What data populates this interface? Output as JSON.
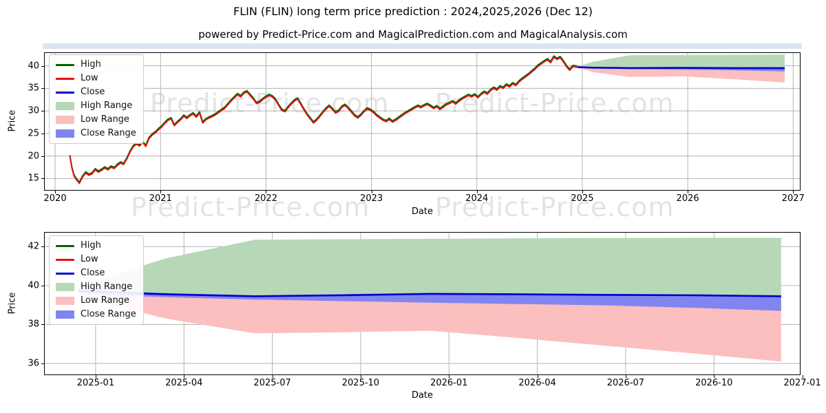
{
  "header": {
    "title": "FLIN (FLIN) long term price prediction : 2024,2025,2026 (Dec 12)",
    "subtitle": "powered by Predict-Price.com and MagicalPrediction.com and MagicalAnalysis.com"
  },
  "watermark": "Predict-Price.com",
  "colors": {
    "high_line": "#006400",
    "low_line": "#e81010",
    "close_line": "#0000cc",
    "high_range_fill": "#b7d8b7",
    "low_range_fill": "#fbbfbf",
    "close_range_fill": "#8185f0",
    "grid": "#b3b3b3",
    "spine": "#000000"
  },
  "chart_data": [
    {
      "type": "line",
      "title": "",
      "xlabel": "Date",
      "ylabel": "Price",
      "grid": true,
      "legend_position": "upper left",
      "x_range": [
        2019.895,
        2027.07
      ],
      "y_range": [
        12.3,
        43.0
      ],
      "x_ticks": [
        {
          "v": 2020,
          "label": "2020"
        },
        {
          "v": 2021,
          "label": "2021"
        },
        {
          "v": 2022,
          "label": "2022"
        },
        {
          "v": 2023,
          "label": "2023"
        },
        {
          "v": 2024,
          "label": "2024"
        },
        {
          "v": 2025,
          "label": "2025"
        },
        {
          "v": 2026,
          "label": "2026"
        },
        {
          "v": 2027,
          "label": "2027"
        }
      ],
      "y_ticks": [
        {
          "v": 15,
          "label": "15"
        },
        {
          "v": 20,
          "label": "20"
        },
        {
          "v": 25,
          "label": "25"
        },
        {
          "v": 30,
          "label": "30"
        },
        {
          "v": 35,
          "label": "35"
        },
        {
          "v": 40,
          "label": "40"
        }
      ],
      "legend": [
        {
          "label": "High",
          "kind": "line",
          "color": "#006400"
        },
        {
          "label": "Low",
          "kind": "line",
          "color": "#e81010"
        },
        {
          "label": "Close",
          "kind": "line",
          "color": "#0000cc"
        },
        {
          "label": "High Range",
          "kind": "patch",
          "color": "#b7d8b7"
        },
        {
          "label": "Low Range",
          "kind": "patch",
          "color": "#fbbfbf"
        },
        {
          "label": "Close Range",
          "kind": "patch",
          "color": "#8185f0"
        }
      ],
      "history": {
        "high_offset": 0.3,
        "low": [
          [
            2020.14,
            19.9
          ],
          [
            2020.16,
            17.2
          ],
          [
            2020.18,
            15.5
          ],
          [
            2020.2,
            14.8
          ],
          [
            2020.23,
            13.9
          ],
          [
            2020.26,
            15.3
          ],
          [
            2020.29,
            16.2
          ],
          [
            2020.32,
            15.7
          ],
          [
            2020.35,
            16.0
          ],
          [
            2020.38,
            16.9
          ],
          [
            2020.41,
            16.4
          ],
          [
            2020.44,
            16.8
          ],
          [
            2020.47,
            17.3
          ],
          [
            2020.5,
            16.9
          ],
          [
            2020.53,
            17.5
          ],
          [
            2020.56,
            17.2
          ],
          [
            2020.59,
            17.9
          ],
          [
            2020.62,
            18.4
          ],
          [
            2020.65,
            18.1
          ],
          [
            2020.68,
            19.3
          ],
          [
            2020.71,
            20.8
          ],
          [
            2020.74,
            22.0
          ],
          [
            2020.77,
            22.6
          ],
          [
            2020.8,
            22.2
          ],
          [
            2020.83,
            23.0
          ],
          [
            2020.86,
            22.1
          ],
          [
            2020.89,
            23.8
          ],
          [
            2020.92,
            24.6
          ],
          [
            2020.95,
            25.1
          ],
          [
            2020.98,
            25.8
          ],
          [
            2021.01,
            26.4
          ],
          [
            2021.04,
            27.2
          ],
          [
            2021.07,
            27.9
          ],
          [
            2021.1,
            28.2
          ],
          [
            2021.13,
            26.7
          ],
          [
            2021.16,
            27.4
          ],
          [
            2021.19,
            28.0
          ],
          [
            2021.22,
            28.8
          ],
          [
            2021.25,
            28.3
          ],
          [
            2021.28,
            28.9
          ],
          [
            2021.31,
            29.3
          ],
          [
            2021.34,
            28.6
          ],
          [
            2021.37,
            29.5
          ],
          [
            2021.4,
            27.3
          ],
          [
            2021.43,
            28.0
          ],
          [
            2021.46,
            28.4
          ],
          [
            2021.49,
            28.7
          ],
          [
            2021.52,
            29.1
          ],
          [
            2021.55,
            29.6
          ],
          [
            2021.58,
            30.1
          ],
          [
            2021.61,
            30.6
          ],
          [
            2021.64,
            31.4
          ],
          [
            2021.67,
            32.2
          ],
          [
            2021.7,
            32.9
          ],
          [
            2021.73,
            33.6
          ],
          [
            2021.76,
            33.1
          ],
          [
            2021.79,
            33.9
          ],
          [
            2021.82,
            34.2
          ],
          [
            2021.85,
            33.4
          ],
          [
            2021.88,
            32.6
          ],
          [
            2021.91,
            31.6
          ],
          [
            2021.94,
            31.9
          ],
          [
            2021.97,
            32.5
          ],
          [
            2022.0,
            33.0
          ],
          [
            2022.03,
            33.4
          ],
          [
            2022.06,
            33.1
          ],
          [
            2022.09,
            32.4
          ],
          [
            2022.12,
            31.2
          ],
          [
            2022.15,
            30.1
          ],
          [
            2022.18,
            29.8
          ],
          [
            2022.21,
            30.7
          ],
          [
            2022.24,
            31.5
          ],
          [
            2022.27,
            32.2
          ],
          [
            2022.3,
            32.6
          ],
          [
            2022.33,
            31.4
          ],
          [
            2022.36,
            30.2
          ],
          [
            2022.39,
            29.1
          ],
          [
            2022.42,
            28.2
          ],
          [
            2022.45,
            27.3
          ],
          [
            2022.48,
            27.9
          ],
          [
            2022.51,
            28.7
          ],
          [
            2022.54,
            29.6
          ],
          [
            2022.57,
            30.4
          ],
          [
            2022.6,
            31.0
          ],
          [
            2022.63,
            30.3
          ],
          [
            2022.66,
            29.5
          ],
          [
            2022.69,
            29.9
          ],
          [
            2022.72,
            30.8
          ],
          [
            2022.75,
            31.2
          ],
          [
            2022.78,
            30.5
          ],
          [
            2022.81,
            29.7
          ],
          [
            2022.84,
            28.9
          ],
          [
            2022.87,
            28.4
          ],
          [
            2022.9,
            29.0
          ],
          [
            2022.93,
            29.8
          ],
          [
            2022.96,
            30.4
          ],
          [
            2022.99,
            30.1
          ],
          [
            2023.02,
            29.6
          ],
          [
            2023.05,
            28.9
          ],
          [
            2023.08,
            28.4
          ],
          [
            2023.11,
            27.9
          ],
          [
            2023.14,
            27.6
          ],
          [
            2023.17,
            28.1
          ],
          [
            2023.2,
            27.5
          ],
          [
            2023.23,
            27.9
          ],
          [
            2023.26,
            28.4
          ],
          [
            2023.29,
            28.9
          ],
          [
            2023.32,
            29.4
          ],
          [
            2023.35,
            29.8
          ],
          [
            2023.38,
            30.2
          ],
          [
            2023.41,
            30.6
          ],
          [
            2023.44,
            31.0
          ],
          [
            2023.47,
            30.7
          ],
          [
            2023.5,
            31.1
          ],
          [
            2023.53,
            31.4
          ],
          [
            2023.56,
            31.0
          ],
          [
            2023.59,
            30.5
          ],
          [
            2023.62,
            30.9
          ],
          [
            2023.65,
            30.3
          ],
          [
            2023.68,
            30.8
          ],
          [
            2023.71,
            31.3
          ],
          [
            2023.74,
            31.6
          ],
          [
            2023.77,
            32.0
          ],
          [
            2023.8,
            31.5
          ],
          [
            2023.83,
            32.1
          ],
          [
            2023.86,
            32.6
          ],
          [
            2023.89,
            33.0
          ],
          [
            2023.92,
            33.4
          ],
          [
            2023.95,
            33.1
          ],
          [
            2023.98,
            33.5
          ],
          [
            2024.01,
            32.9
          ],
          [
            2024.04,
            33.6
          ],
          [
            2024.07,
            34.1
          ],
          [
            2024.1,
            33.7
          ],
          [
            2024.13,
            34.5
          ],
          [
            2024.16,
            35.0
          ],
          [
            2024.19,
            34.6
          ],
          [
            2024.22,
            35.3
          ],
          [
            2024.25,
            35.0
          ],
          [
            2024.28,
            35.7
          ],
          [
            2024.31,
            35.3
          ],
          [
            2024.34,
            36.0
          ],
          [
            2024.37,
            35.6
          ],
          [
            2024.4,
            36.4
          ],
          [
            2024.43,
            37.0
          ],
          [
            2024.46,
            37.5
          ],
          [
            2024.49,
            38.0
          ],
          [
            2024.52,
            38.6
          ],
          [
            2024.55,
            39.2
          ],
          [
            2024.58,
            39.9
          ],
          [
            2024.61,
            40.4
          ],
          [
            2024.64,
            40.9
          ],
          [
            2024.67,
            41.3
          ],
          [
            2024.7,
            40.7
          ],
          [
            2024.73,
            41.9
          ],
          [
            2024.76,
            41.4
          ],
          [
            2024.79,
            41.8
          ],
          [
            2024.82,
            40.9
          ],
          [
            2024.85,
            39.8
          ],
          [
            2024.88,
            39.0
          ],
          [
            2024.91,
            39.8
          ],
          [
            2024.95,
            39.7
          ]
        ]
      },
      "prediction": {
        "t": [
          2024.95,
          2025.1,
          2025.45,
          2025.95,
          2026.45,
          2026.92
        ],
        "high_upper": [
          39.8,
          40.9,
          42.35,
          42.4,
          42.45,
          42.5
        ],
        "close": [
          39.72,
          39.6,
          39.5,
          39.55,
          39.5,
          39.5
        ],
        "low_lower": [
          39.6,
          38.6,
          37.55,
          37.65,
          37.0,
          36.3
        ],
        "close_upper": [
          39.85,
          39.65,
          39.55,
          39.62,
          39.58,
          39.55
        ],
        "close_lower": [
          39.6,
          39.42,
          39.3,
          39.15,
          39.0,
          38.75
        ]
      }
    },
    {
      "type": "line",
      "title": "",
      "xlabel": "Date",
      "ylabel": "Price",
      "grid": true,
      "legend_position": "upper left",
      "x_range": [
        2024.854,
        2026.995
      ],
      "y_range": [
        35.4,
        42.75
      ],
      "x_ticks": [
        {
          "v": 2025.0,
          "label": "2025-01"
        },
        {
          "v": 2025.25,
          "label": "2025-04"
        },
        {
          "v": 2025.5,
          "label": "2025-07"
        },
        {
          "v": 2025.75,
          "label": "2025-10"
        },
        {
          "v": 2026.0,
          "label": "2026-01"
        },
        {
          "v": 2026.25,
          "label": "2026-04"
        },
        {
          "v": 2026.5,
          "label": "2026-07"
        },
        {
          "v": 2026.75,
          "label": "2026-10"
        },
        {
          "v": 2027.0,
          "label": "2027-01"
        }
      ],
      "y_ticks": [
        {
          "v": 36,
          "label": "36"
        },
        {
          "v": 38,
          "label": "38"
        },
        {
          "v": 40,
          "label": "40"
        },
        {
          "v": 42,
          "label": "42"
        }
      ],
      "legend": [
        {
          "label": "High",
          "kind": "line",
          "color": "#006400"
        },
        {
          "label": "Low",
          "kind": "line",
          "color": "#e81010"
        },
        {
          "label": "Close",
          "kind": "line",
          "color": "#0000cc"
        },
        {
          "label": "High Range",
          "kind": "patch",
          "color": "#b7d8b7"
        },
        {
          "label": "Low Range",
          "kind": "patch",
          "color": "#fbbfbf"
        },
        {
          "label": "Close Range",
          "kind": "patch",
          "color": "#8185f0"
        }
      ],
      "prediction": {
        "t": [
          2024.95,
          2025.04,
          2025.2,
          2025.45,
          2025.7,
          2025.95,
          2026.2,
          2026.45,
          2026.7,
          2026.94
        ],
        "high_upper": [
          39.85,
          40.5,
          41.4,
          42.35,
          42.38,
          42.4,
          42.42,
          42.44,
          42.45,
          42.45
        ],
        "close": [
          39.72,
          39.65,
          39.55,
          39.45,
          39.5,
          39.57,
          39.55,
          39.52,
          39.5,
          39.45
        ],
        "low_lower": [
          39.6,
          39.0,
          38.3,
          37.55,
          37.6,
          37.68,
          37.3,
          36.9,
          36.5,
          36.1
        ],
        "close_upper": [
          39.88,
          39.72,
          39.62,
          39.5,
          39.56,
          39.63,
          39.6,
          39.57,
          39.55,
          39.5
        ],
        "close_lower": [
          39.62,
          39.5,
          39.4,
          39.28,
          39.2,
          39.12,
          39.05,
          38.98,
          38.85,
          38.7
        ]
      }
    }
  ]
}
